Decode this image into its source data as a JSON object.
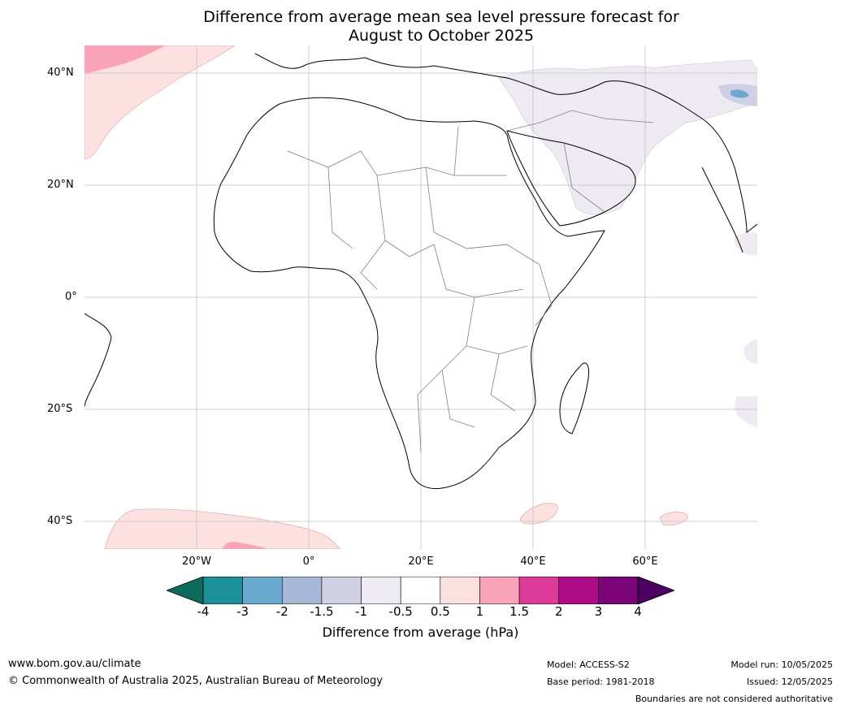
{
  "title_line1": "Difference from average mean sea level pressure forecast for",
  "title_line2": "August to October 2025",
  "map": {
    "latitude_labels": [
      "40°N",
      "20°N",
      "0°",
      "20°S",
      "40°S"
    ],
    "longitude_labels": [
      "20°W",
      "0°",
      "20°E",
      "40°E",
      "60°E"
    ],
    "extent": {
      "lon_min": -40,
      "lon_max": 80,
      "lat_min": -45,
      "lat_max": 45
    }
  },
  "legend": {
    "title": "Difference from average (hPa)",
    "tick_labels": [
      "-4",
      "-3",
      "-2",
      "-1.5",
      "-1",
      "-0.5",
      "0.5",
      "1",
      "1.5",
      "2",
      "3",
      "4"
    ],
    "colors": [
      "#0d6b5e",
      "#1b9099",
      "#6aaad0",
      "#a7b8d8",
      "#cfd0e3",
      "#eeeaf1",
      "#ffffff",
      "#fde0e0",
      "#f9a2b8",
      "#dd3a9a",
      "#ad0b85",
      "#7b0478",
      "#4c0060"
    ]
  },
  "footer": {
    "website": "www.bom.gov.au/climate",
    "copyright": "© Commonwealth of Australia 2025, Australian Bureau of Meteorology",
    "model": "Model: ACCESS-S2",
    "base_period": "Base period: 1981-2018",
    "model_run": "Model run: 10/05/2025",
    "issued": "Issued: 12/05/2025",
    "disclaimer": "Boundaries are not considered authoritative"
  }
}
